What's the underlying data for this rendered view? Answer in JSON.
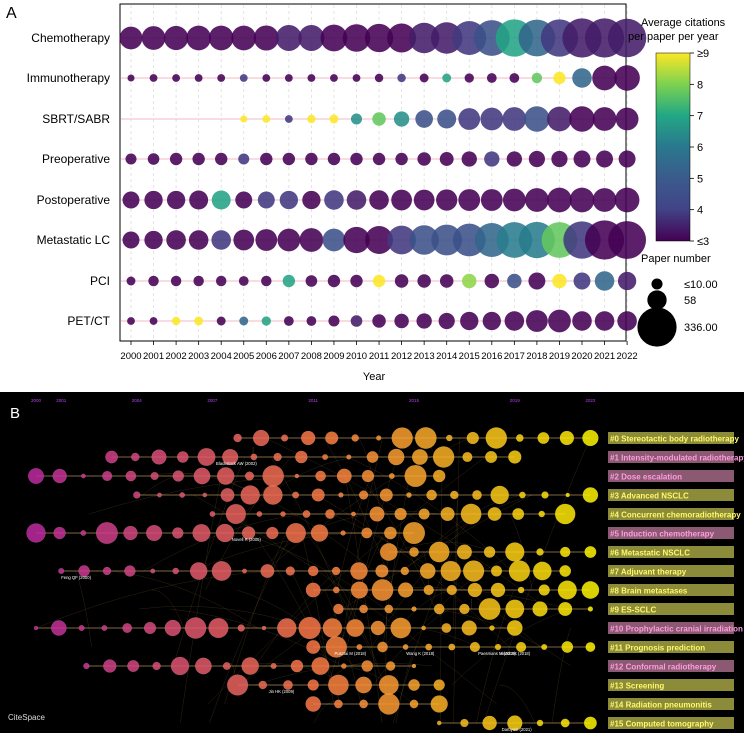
{
  "panel_a": {
    "label": "A",
    "chart_data": {
      "type": "scatter",
      "subtype": "bubble",
      "xlabel": "Year",
      "ylabel": "",
      "x": [
        "2000",
        "2001",
        "2002",
        "2003",
        "2004",
        "2005",
        "2006",
        "2007",
        "2008",
        "2009",
        "2010",
        "2011",
        "2012",
        "2013",
        "2014",
        "2015",
        "2016",
        "2017",
        "2018",
        "2019",
        "2020",
        "2021",
        "2022"
      ],
      "categories": [
        "Chemotherapy",
        "Immunotherapy",
        "SBRT/SABR",
        "Preoperative",
        "Postoperative",
        "Metastatic LC",
        "PCI",
        "PET/CT"
      ],
      "series": [
        {
          "name": "Chemotherapy",
          "paper_number": [
            90,
            100,
            105,
            110,
            110,
            110,
            115,
            125,
            125,
            135,
            145,
            155,
            165,
            185,
            200,
            240,
            270,
            300,
            290,
            300,
            336,
            336,
            320
          ],
          "avg_citations": [
            3,
            3,
            3,
            3,
            3,
            3,
            3,
            3.5,
            3.5,
            3,
            3,
            3,
            3,
            3.5,
            3.5,
            4,
            4.5,
            6.5,
            5,
            4,
            3.5,
            3.5,
            3.5
          ]
        },
        {
          "name": "Immunotherapy",
          "paper_number": [
            1,
            2,
            2,
            2,
            2,
            2,
            2,
            2,
            2,
            2,
            2,
            3,
            3,
            4,
            4,
            5,
            6,
            6,
            8,
            15,
            60,
            110,
            120
          ],
          "avg_citations": [
            3,
            3,
            3,
            3,
            3,
            4,
            3,
            3,
            3,
            3,
            3,
            3,
            4,
            3,
            6.5,
            3,
            3,
            3,
            7.5,
            9,
            5,
            3,
            3
          ]
        },
        {
          "name": "SBRT/SABR",
          "paper_number": [
            null,
            null,
            null,
            null,
            null,
            1,
            2,
            2,
            3,
            4,
            10,
            20,
            30,
            45,
            55,
            80,
            90,
            100,
            120,
            110,
            120,
            100,
            90
          ],
          "avg_citations": [
            null,
            null,
            null,
            null,
            null,
            9,
            9,
            4,
            9,
            9,
            6,
            7.5,
            6,
            4.5,
            4.5,
            4,
            4,
            4,
            4.5,
            3.5,
            3,
            3,
            3
          ]
        },
        {
          "name": "Preoperative",
          "paper_number": [
            10,
            12,
            15,
            15,
            15,
            10,
            15,
            15,
            15,
            15,
            15,
            15,
            15,
            20,
            22,
            30,
            30,
            30,
            35,
            35,
            40,
            40,
            40
          ],
          "avg_citations": [
            3,
            3,
            3,
            3,
            3,
            4,
            3,
            3,
            3,
            3,
            3,
            3,
            3,
            3,
            3,
            3,
            4,
            3,
            3,
            3,
            3,
            3,
            3
          ]
        },
        {
          "name": "Postoperative",
          "paper_number": [
            40,
            50,
            50,
            55,
            55,
            40,
            40,
            50,
            50,
            60,
            60,
            60,
            70,
            70,
            75,
            80,
            80,
            90,
            100,
            110,
            110,
            100,
            110
          ],
          "avg_citations": [
            3,
            3,
            3,
            3,
            6.5,
            3,
            4,
            4,
            3,
            4,
            3.5,
            3,
            3,
            3,
            3,
            3,
            3,
            3,
            3,
            3,
            3,
            3,
            3
          ]
        },
        {
          "name": "Metastatic LC",
          "paper_number": [
            40,
            50,
            60,
            60,
            60,
            70,
            80,
            90,
            100,
            90,
            130,
            150,
            160,
            170,
            190,
            220,
            240,
            270,
            280,
            270,
            300,
            336,
            310
          ],
          "avg_citations": [
            3,
            3,
            3,
            3,
            4,
            3,
            3,
            3,
            3,
            4.5,
            3,
            3,
            4,
            4.5,
            4.5,
            4.5,
            5,
            5.5,
            5.5,
            7.5,
            4,
            3,
            3
          ]
        },
        {
          "name": "PCI",
          "paper_number": [
            4,
            8,
            8,
            8,
            8,
            6,
            8,
            15,
            12,
            15,
            15,
            15,
            20,
            20,
            20,
            25,
            25,
            25,
            40,
            25,
            40,
            60,
            50
          ],
          "avg_citations": [
            3,
            3,
            3,
            3,
            3,
            3,
            3,
            6.5,
            3,
            3,
            3,
            9,
            3,
            3,
            3,
            8,
            3,
            4.5,
            3,
            9,
            4,
            5,
            3.5
          ]
        },
        {
          "name": "PET/CT",
          "paper_number": [
            2,
            2,
            3,
            4,
            4,
            4,
            5,
            6,
            6,
            10,
            12,
            20,
            25,
            30,
            35,
            50,
            50,
            60,
            80,
            90,
            60,
            60,
            60
          ],
          "avg_citations": [
            3,
            3,
            9,
            9,
            3,
            5,
            6.5,
            3,
            3,
            3,
            3.5,
            3,
            3,
            3,
            3,
            3,
            3,
            3,
            3,
            3,
            3,
            3,
            3
          ]
        }
      ],
      "colorbar": {
        "title_line1": "Average citations",
        "title_line2": "per paper per year",
        "min": 3,
        "max": 9,
        "ticks": [
          "≤3",
          "4",
          "5",
          "6",
          "7",
          "8",
          "≥9"
        ]
      },
      "size_legend": {
        "title": "Paper number",
        "entries": [
          "≤10.00",
          "58",
          "336.00"
        ],
        "values": [
          10,
          58,
          336
        ]
      },
      "colors": {
        "low": "#440154",
        "mid": "#21918c",
        "high": "#fde725"
      }
    }
  },
  "panel_b": {
    "label": "B",
    "chart_data": {
      "type": "timeline",
      "title": "",
      "time_ticks": [
        "2000",
        "2001",
        "2004",
        "2007",
        "2011",
        "2015",
        "2019",
        "2022"
      ],
      "clusters": [
        {
          "label": "#0 Stereotactic body radiotherapy",
          "span": [
            "2008",
            "2022"
          ],
          "box": "olive"
        },
        {
          "label": "#1 Intensity-modulated radiotherapy",
          "span": [
            "2003",
            "2019"
          ],
          "box": "pink"
        },
        {
          "label": "#2 Dose escalation",
          "span": [
            "2000",
            "2016"
          ],
          "box": "pink"
        },
        {
          "label": "#3 Advanced NSCLC",
          "span": [
            "2004",
            "2022"
          ],
          "box": "olive"
        },
        {
          "label": "#4 Concurrent chemoradiotherapy",
          "span": [
            "2007",
            "2021"
          ],
          "box": "olive"
        },
        {
          "label": "#5 Induction chemotherapy",
          "span": [
            "2000",
            "2015"
          ],
          "box": "pink"
        },
        {
          "label": "#6 Metastatic NSCLC",
          "span": [
            "2014",
            "2022"
          ],
          "box": "olive"
        },
        {
          "label": "#7 Adjuvant therapy",
          "span": [
            "2001",
            "2021"
          ],
          "box": "olive"
        },
        {
          "label": "#8 Brain metastases",
          "span": [
            "2011",
            "2022"
          ],
          "box": "olive"
        },
        {
          "label": "#9 ES-SCLC",
          "span": [
            "2012",
            "2022"
          ],
          "box": "olive"
        },
        {
          "label": "#10 Prophylactic cranial irradiation",
          "span": [
            "2000",
            "2019"
          ],
          "box": "pink"
        },
        {
          "label": "#11 Prognosis prediction",
          "span": [
            "2011",
            "2022"
          ],
          "box": "olive"
        },
        {
          "label": "#12 Conformal radiotherapy",
          "span": [
            "2002",
            "2015"
          ],
          "box": "pink"
        },
        {
          "label": "#13 Screening",
          "span": [
            "2008",
            "2016"
          ],
          "box": "olive"
        },
        {
          "label": "#14 Radiation pneumonitis",
          "span": [
            "2011",
            "2016"
          ],
          "box": "olive"
        },
        {
          "label": "#15 Computed tomography",
          "span": [
            "2016",
            "2022"
          ],
          "box": "olive"
        }
      ],
      "author_labels": [
        {
          "text": "Feng QF (2000)",
          "cluster": 7
        },
        {
          "text": "Blackstock AW (2002)",
          "cluster": 1
        },
        {
          "text": "Novell R (2005)",
          "cluster": 5
        },
        {
          "text": "Pusztai M (2018)",
          "cluster": 11
        },
        {
          "text": "Wang K (2018)",
          "cluster": 11
        },
        {
          "text": "Paesmans M (2019)",
          "cluster": 11
        },
        {
          "text": "Jin HK (2009)",
          "cluster": 13
        },
        {
          "text": "Darbyoin (2021)",
          "cluster": 15
        },
        {
          "text": "Vinod SK (2018)",
          "cluster": 11
        }
      ],
      "watermark": "CiteSpace",
      "colors": {
        "background": "#000000",
        "early": "#c02aa0",
        "late": "#fff400",
        "box_olive": "#8b8b3a",
        "box_pink": "#8b5a72"
      }
    }
  }
}
